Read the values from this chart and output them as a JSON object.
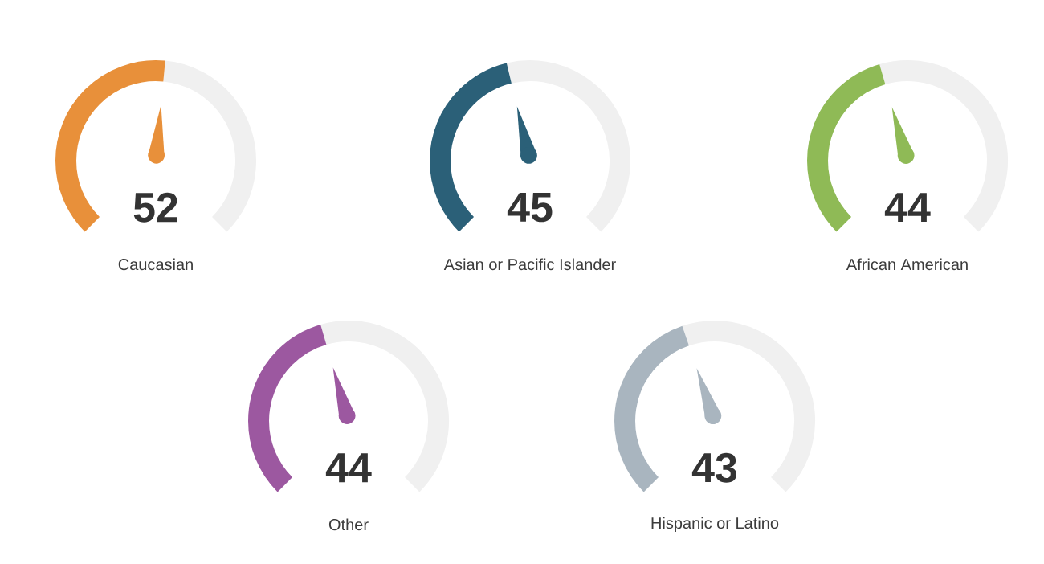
{
  "chart_data": [
    {
      "type": "other",
      "categories": [
        "Caucasian"
      ],
      "values": [
        52
      ],
      "value_labels": [
        "52"
      ],
      "colors": [
        "#e8903a"
      ]
    },
    {
      "type": "other",
      "categories": [
        "Asian or Pacific Islander"
      ],
      "values": [
        45
      ],
      "value_labels": [
        "45"
      ],
      "colors": [
        "#2b6078"
      ]
    },
    {
      "type": "other",
      "categories": [
        "African American"
      ],
      "values": [
        44
      ],
      "value_labels": [
        "44"
      ],
      "colors": [
        "#8fba56"
      ]
    },
    {
      "type": "other",
      "categories": [
        "Other"
      ],
      "values": [
        44
      ],
      "value_labels": [
        "44"
      ],
      "colors": [
        "#9c58a0"
      ]
    },
    {
      "type": "other",
      "categories": [
        "Hispanic or Latino"
      ],
      "values": [
        43
      ],
      "value_labels": [
        "43"
      ],
      "colors": [
        "#a9b5bf"
      ]
    }
  ]
}
